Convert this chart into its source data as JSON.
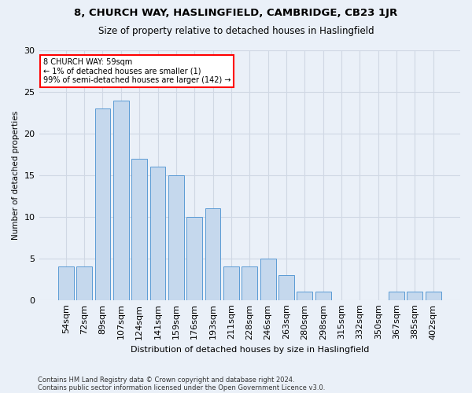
{
  "title1": "8, CHURCH WAY, HASLINGFIELD, CAMBRIDGE, CB23 1JR",
  "title2": "Size of property relative to detached houses in Haslingfield",
  "xlabel": "Distribution of detached houses by size in Haslingfield",
  "ylabel": "Number of detached properties",
  "footnote1": "Contains HM Land Registry data © Crown copyright and database right 2024.",
  "footnote2": "Contains public sector information licensed under the Open Government Licence v3.0.",
  "annotation_line1": "8 CHURCH WAY: 59sqm",
  "annotation_line2": "← 1% of detached houses are smaller (1)",
  "annotation_line3": "99% of semi-detached houses are larger (142) →",
  "categories": [
    "54sqm",
    "72sqm",
    "89sqm",
    "107sqm",
    "124sqm",
    "141sqm",
    "159sqm",
    "176sqm",
    "193sqm",
    "211sqm",
    "228sqm",
    "246sqm",
    "263sqm",
    "280sqm",
    "298sqm",
    "315sqm",
    "332sqm",
    "350sqm",
    "367sqm",
    "385sqm",
    "402sqm"
  ],
  "values": [
    4,
    4,
    23,
    24,
    17,
    16,
    15,
    10,
    11,
    4,
    4,
    5,
    3,
    1,
    1,
    0,
    0,
    0,
    1,
    1,
    1
  ],
  "bar_color": "#c5d8ed",
  "bar_edge_color": "#5b9bd5",
  "annotation_box_color": "white",
  "annotation_box_edge_color": "red",
  "grid_color": "#d0d8e4",
  "background_color": "#eaf0f8",
  "ylim": [
    0,
    30
  ],
  "yticks": [
    0,
    5,
    10,
    15,
    20,
    25,
    30
  ]
}
